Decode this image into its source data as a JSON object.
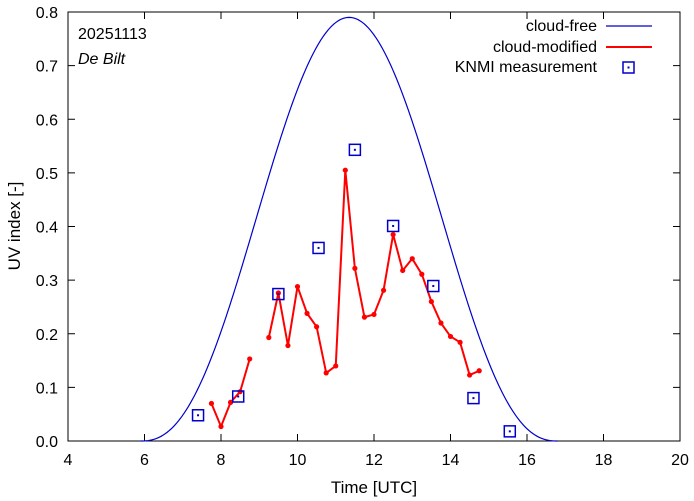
{
  "chart_data": {
    "type": "line",
    "title": "",
    "annotations": {
      "date": "20251113",
      "station": "De Bilt"
    },
    "xlabel": "Time  [UTC]",
    "ylabel": "UV index  [-]",
    "xlim": [
      4,
      20
    ],
    "ylim": [
      0,
      0.8
    ],
    "xticks": [
      4,
      6,
      8,
      10,
      12,
      14,
      16,
      18,
      20
    ],
    "yticks": [
      0,
      0.1,
      0.2,
      0.3,
      0.4,
      0.5,
      0.6,
      0.7,
      0.8
    ],
    "xtick_labels": [
      "4",
      "6",
      "8",
      "10",
      "12",
      "14",
      "16",
      "18",
      "20"
    ],
    "ytick_labels": [
      "0.0",
      "0.1",
      "0.2",
      "0.3",
      "0.4",
      "0.5",
      "0.6",
      "0.7",
      "0.8"
    ],
    "legend_position": "top-right",
    "series": [
      {
        "name": "cloud-free",
        "style": "line",
        "color": "#0000cc",
        "peak_x": 11.35,
        "peak_y": 0.79,
        "start_x": 5.9,
        "end_x": 16.8
      },
      {
        "name": "cloud-modified",
        "style": "line-points",
        "color": "#ff0000",
        "segments": [
          {
            "x": [
              7.75,
              8.0,
              8.25,
              8.5,
              8.75
            ],
            "y": [
              0.07,
              0.027,
              0.072,
              0.092,
              0.153
            ]
          },
          {
            "x": [
              9.25,
              9.5,
              9.75,
              10.0,
              10.25,
              10.5,
              10.75,
              11.0,
              11.25,
              11.5,
              11.75,
              12.0,
              12.25,
              12.5,
              12.75,
              13.0,
              13.25,
              13.5,
              13.75,
              14.0,
              14.25,
              14.5,
              14.75
            ],
            "y": [
              0.193,
              0.276,
              0.178,
              0.288,
              0.238,
              0.213,
              0.127,
              0.14,
              0.505,
              0.322,
              0.231,
              0.236,
              0.281,
              0.385,
              0.318,
              0.34,
              0.311,
              0.26,
              0.22,
              0.195,
              0.184,
              0.123,
              0.131
            ]
          }
        ]
      },
      {
        "name": "KNMI measurement",
        "style": "markers",
        "color": "#0000cc",
        "x": [
          7.4,
          8.45,
          9.5,
          10.55,
          11.5,
          12.5,
          13.55,
          14.6,
          15.55
        ],
        "y": [
          0.048,
          0.083,
          0.274,
          0.36,
          0.543,
          0.401,
          0.289,
          0.08,
          0.018
        ]
      }
    ]
  }
}
